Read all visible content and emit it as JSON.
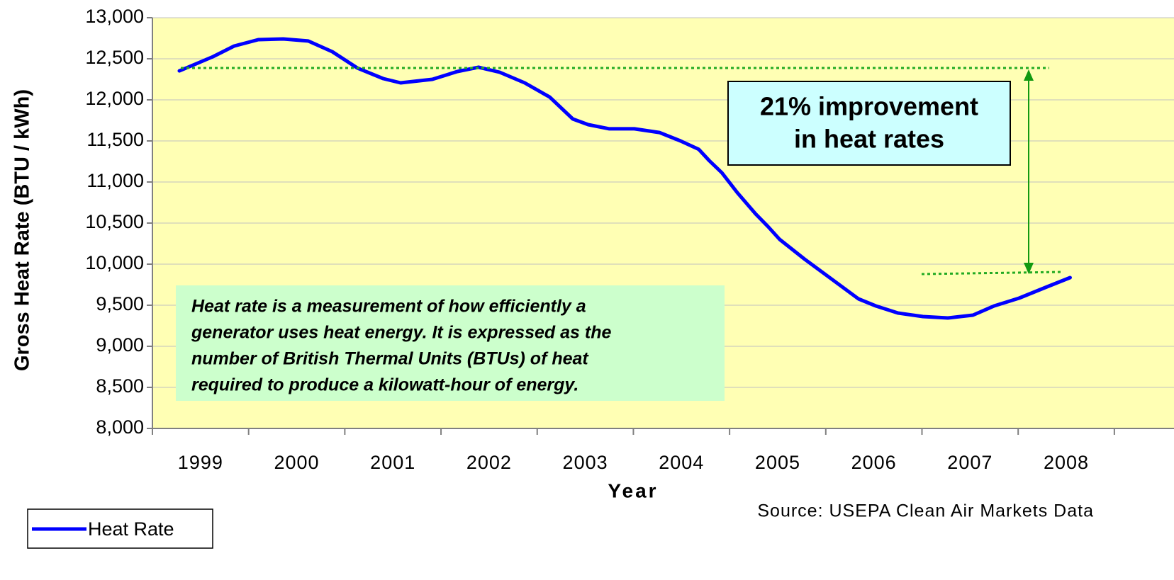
{
  "chart_data": {
    "type": "line",
    "y_label": "Gross Heat Rate (BTU / kWh)",
    "x_label": "Year",
    "source": "Source: USEPA Clean Air Markets Data",
    "annotation": [
      "21% improvement",
      "in heat rates"
    ],
    "note": [
      "Heat rate is a measurement of how efficiently a",
      "generator uses heat energy. It is expressed as the",
      "number of British Thermal Units (BTUs) of heat",
      "required to produce a kilowatt-hour of energy."
    ],
    "x": [
      1998.78,
      1999.13,
      1999.35,
      1999.6,
      1999.86,
      2000.12,
      2000.37,
      2000.63,
      2000.9,
      2001.08,
      2001.41,
      2001.67,
      2001.89,
      2002.11,
      2002.37,
      2002.63,
      2002.87,
      2003.03,
      2003.25,
      2003.51,
      2003.77,
      2003.99,
      2004.18,
      2004.29,
      2004.42,
      2004.58,
      2004.77,
      2004.9,
      2005.02,
      2005.28,
      2005.53,
      2005.84,
      2006.02,
      2006.25,
      2006.51,
      2006.77,
      2007.03,
      2007.25,
      2007.51,
      2007.8,
      2008.04
    ],
    "series": [
      {
        "name": "Heat Rate",
        "color": "#0000ff",
        "values": [
          12353,
          12526,
          12655,
          12733,
          12741,
          12716,
          12586,
          12388,
          12259,
          12207,
          12250,
          12345,
          12397,
          12336,
          12207,
          12034,
          11767,
          11698,
          11647,
          11647,
          11603,
          11500,
          11397,
          11259,
          11112,
          10871,
          10612,
          10457,
          10302,
          10060,
          9845,
          9578,
          9491,
          9405,
          9362,
          9345,
          9379,
          9491,
          9586,
          9724,
          9836
        ]
      }
    ],
    "xlim": [
      1998.5,
      2009.12
    ],
    "xticks": [
      1999,
      2000,
      2001,
      2002,
      2003,
      2004,
      2005,
      2006,
      2007,
      2008
    ],
    "ylim": [
      8000,
      13000
    ],
    "yticks": [
      {
        "value": 8000,
        "label": "8,000"
      },
      {
        "value": 8500,
        "label": "8,500"
      },
      {
        "value": 9000,
        "label": "9,000"
      },
      {
        "value": 9500,
        "label": "9,500"
      },
      {
        "value": 10000,
        "label": "10,000"
      },
      {
        "value": 10500,
        "label": "10,500"
      },
      {
        "value": 11000,
        "label": "11,000"
      },
      {
        "value": 11500,
        "label": "11,500"
      },
      {
        "value": 12000,
        "label": "12,000"
      },
      {
        "value": 12500,
        "label": "12,500"
      },
      {
        "value": 13000,
        "label": "13,000"
      }
    ],
    "grid": true,
    "plot_background": "#ffffb4"
  }
}
